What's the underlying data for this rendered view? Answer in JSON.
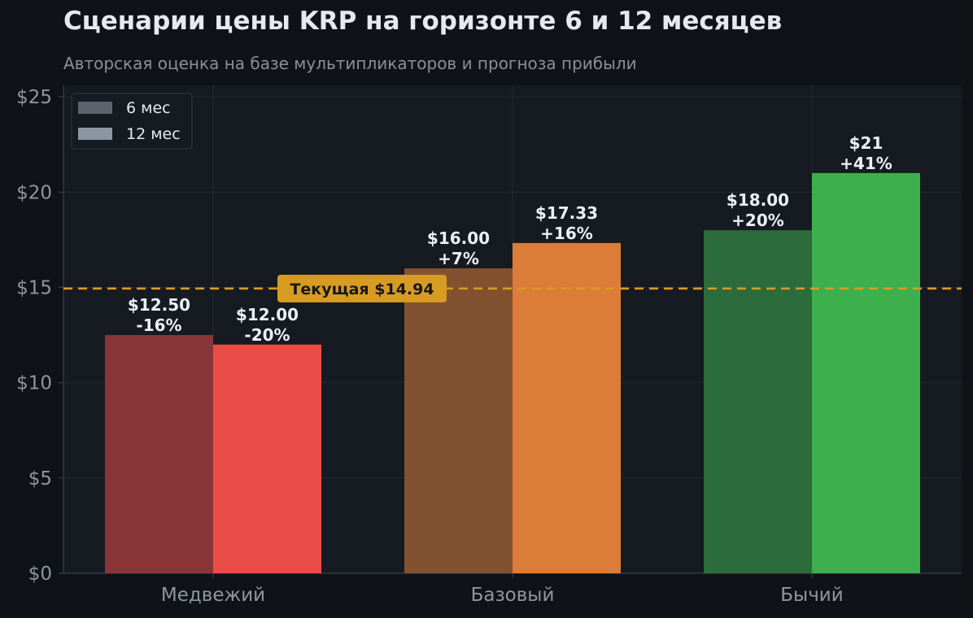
{
  "chart_data": {
    "type": "bar",
    "title": "Сценарии цены KRP на горизонте 6 и 12 месяцев",
    "subtitle": "Авторская оценка на базе мультипликаторов и прогноза прибыли",
    "categories": [
      "Медвежий",
      "Базовый",
      "Бычий"
    ],
    "series": [
      {
        "name": "6 мес",
        "values": [
          12.5,
          16.0,
          18.0
        ],
        "value_labels": [
          "$12.50",
          "$16.00",
          "$18.00"
        ],
        "change_labels": [
          "-16%",
          "+7%",
          "+20%"
        ],
        "colors": [
          "#8a3538",
          "#82512f",
          "#2b6b3c"
        ]
      },
      {
        "name": "12 мес",
        "values": [
          12.0,
          17.33,
          21.0
        ],
        "value_labels": [
          "$12.00",
          "$17.33",
          "$21"
        ],
        "change_labels": [
          "-20%",
          "+16%",
          "+41%"
        ],
        "colors": [
          "#ea4d47",
          "#db7d39",
          "#3db04d"
        ]
      }
    ],
    "legend_colors": [
      "#5c636e",
      "#8c96a2"
    ],
    "reference_line": {
      "value": 14.94,
      "label": "Текущая $14.94",
      "color": "#d89b22"
    },
    "ylim": [
      0,
      25.6
    ],
    "yticks": [
      0,
      5,
      10,
      15,
      20,
      25
    ],
    "ytick_labels": [
      "$0",
      "$5",
      "$10",
      "$15",
      "$20",
      "$25"
    ],
    "grid": true,
    "legend_position": "top-left",
    "xlabel": "",
    "ylabel": ""
  }
}
